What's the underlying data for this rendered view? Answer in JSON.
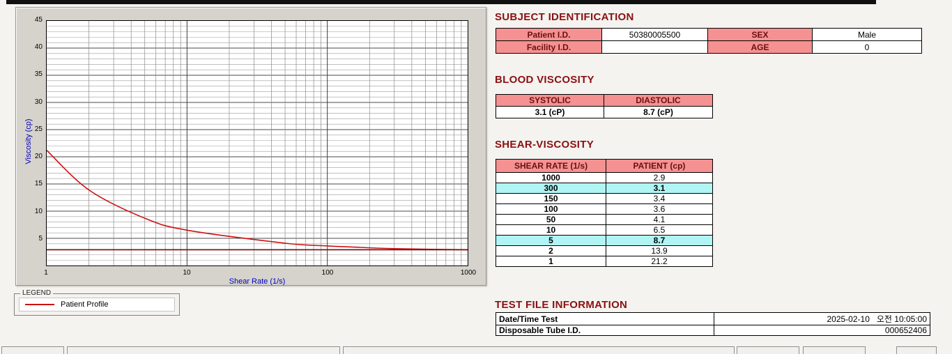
{
  "chart": {
    "ylabel": "Viscosity (cp)",
    "xlabel": "Shear Rate (1/s)",
    "legend_title": "LEGEND",
    "legend_label": "Patient Profile"
  },
  "chart_data": {
    "type": "line",
    "title": "",
    "xlabel": "Shear Rate (1/s)",
    "ylabel": "Viscosity (cp)",
    "x_scale": "log",
    "xlim": [
      1,
      1000
    ],
    "ylim": [
      0,
      45
    ],
    "x_ticks": [
      1,
      10,
      100,
      1000
    ],
    "y_ticks": [
      5,
      10,
      15,
      20,
      25,
      30,
      35,
      40,
      45
    ],
    "grid": true,
    "legend_position": "below-left",
    "x": [
      1,
      2,
      5,
      10,
      50,
      100,
      150,
      300,
      1000
    ],
    "series": [
      {
        "name": "Patient Profile",
        "color": "#cc1111",
        "values": [
          21.2,
          13.9,
          8.7,
          6.5,
          4.1,
          3.6,
          3.4,
          3.1,
          2.9
        ]
      },
      {
        "name": "baseline",
        "color": "#7a1414",
        "values": [
          2.9,
          2.9,
          2.9,
          2.9,
          2.9,
          2.9,
          2.9,
          2.9,
          2.9
        ]
      }
    ]
  },
  "subject": {
    "title": "SUBJECT IDENTIFICATION",
    "rows": [
      {
        "label": "Patient I.D.",
        "value": "50380005500",
        "label2": "SEX",
        "value2": "Male"
      },
      {
        "label": "Facility I.D.",
        "value": "",
        "label2": "AGE",
        "value2": "0"
      }
    ]
  },
  "blood_viscosity": {
    "title": "BLOOD VISCOSITY",
    "headers": [
      "SYSTOLIC",
      "DIASTOLIC"
    ],
    "values": [
      "3.1 (cP)",
      "8.7 (cP)"
    ]
  },
  "shear_viscosity": {
    "title": "SHEAR-VISCOSITY",
    "headers": [
      "SHEAR RATE (1/s)",
      "PATIENT (cp)"
    ],
    "rows": [
      {
        "rate": "1000",
        "value": "2.9",
        "highlight": false
      },
      {
        "rate": "300",
        "value": "3.1",
        "highlight": true
      },
      {
        "rate": "150",
        "value": "3.4",
        "highlight": false
      },
      {
        "rate": "100",
        "value": "3.6",
        "highlight": false
      },
      {
        "rate": "50",
        "value": "4.1",
        "highlight": false
      },
      {
        "rate": "10",
        "value": "6.5",
        "highlight": false
      },
      {
        "rate": "5",
        "value": "8.7",
        "highlight": true
      },
      {
        "rate": "2",
        "value": "13.9",
        "highlight": false
      },
      {
        "rate": "1",
        "value": "21.2",
        "highlight": false
      }
    ]
  },
  "test_file": {
    "title": "TEST FILE INFORMATION",
    "rows": [
      {
        "label": "Date/Time Test",
        "value": "2025-02-10   오전 10:05:00"
      },
      {
        "label": "Disposable Tube I.D.",
        "value": "000652406"
      }
    ]
  }
}
